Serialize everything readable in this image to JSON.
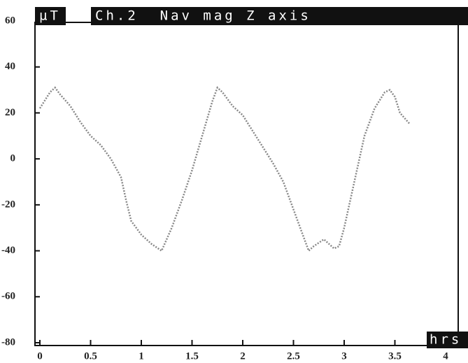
{
  "chart_data": {
    "type": "line",
    "title": "Ch.2  Nav mag Z axis",
    "y_label": "µT",
    "x_label": "hrs",
    "x": [
      0,
      0.1,
      0.15,
      0.2,
      0.3,
      0.4,
      0.5,
      0.6,
      0.7,
      0.8,
      0.85,
      0.9,
      1.0,
      1.1,
      1.2,
      1.3,
      1.4,
      1.5,
      1.6,
      1.7,
      1.75,
      1.8,
      1.9,
      2.0,
      2.1,
      2.2,
      2.3,
      2.4,
      2.5,
      2.6,
      2.65,
      2.7,
      2.8,
      2.9,
      2.95,
      3.0,
      3.1,
      3.2,
      3.3,
      3.4,
      3.45,
      3.5,
      3.55,
      3.65
    ],
    "series": [
      {
        "color": "#888888",
        "values": [
          22,
          29,
          31,
          28,
          23,
          16,
          10,
          6,
          0,
          -8,
          -18,
          -27,
          -33,
          -37,
          -40,
          -30,
          -18,
          -5,
          10,
          25,
          31,
          29,
          23,
          19,
          12,
          5,
          -2,
          -10,
          -22,
          -34,
          -40,
          -38,
          -35,
          -39,
          -38,
          -30,
          -10,
          10,
          22,
          29,
          30,
          27,
          20,
          15
        ]
      }
    ],
    "xlim": [
      0,
      4
    ],
    "xticks": [
      0,
      0.5,
      1,
      1.5,
      2,
      2.5,
      3,
      3.5,
      4
    ],
    "ylim": [
      -80,
      60
    ],
    "yticks": [
      60,
      40,
      20,
      0,
      -20,
      -40,
      -60,
      -80
    ]
  }
}
